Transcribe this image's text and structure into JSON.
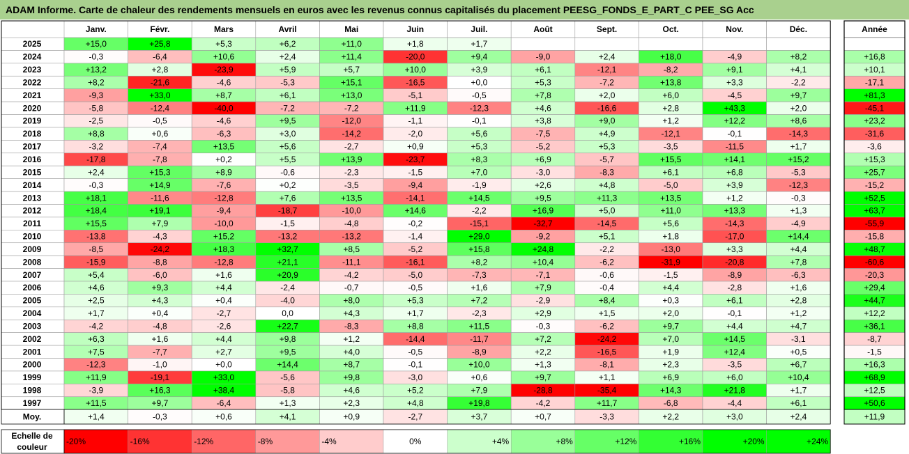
{
  "title": "ADAM Informe. Carte de chaleur des rendements mensuels en euros avec les revenus connus capitalisés du placement PEESG_FONDS_E_PART_C PEE_SG Acc",
  "chart_data": {
    "type": "heatmap",
    "months": [
      "Janv.",
      "Févr.",
      "Mars",
      "Avril",
      "Mai",
      "Juin",
      "Juil.",
      "Août",
      "Sept.",
      "Oct.",
      "Nov.",
      "Déc."
    ],
    "year_header": "Année",
    "rows": [
      {
        "year": "2025",
        "m": [
          "+15,0",
          "+25,8",
          "+5,3",
          "+6,2",
          "+11,0",
          "+1,8",
          "+1,7",
          "",
          "",
          "",
          "",
          ""
        ],
        "y": ""
      },
      {
        "year": "2024",
        "m": [
          "-0,3",
          "-6,4",
          "+10,6",
          "+2,4",
          "+11,4",
          "-20,0",
          "+9,4",
          "-9,0",
          "+2,4",
          "+18,0",
          "-4,9",
          "+8,2"
        ],
        "y": "+16,8"
      },
      {
        "year": "2023",
        "m": [
          "+13,2",
          "+2,8",
          "-23,9",
          "+5,9",
          "+5,7",
          "+10,0",
          "+3,9",
          "+6,1",
          "-12,1",
          "-8,2",
          "+9,1",
          "+4,1"
        ],
        "y": "+10,1"
      },
      {
        "year": "2022",
        "m": [
          "+8,2",
          "-21,6",
          "-4,6",
          "-5,3",
          "+15,1",
          "-16,5",
          "+0,0",
          "+5,3",
          "-7,2",
          "+13,8",
          "+3,3",
          "-2,2"
        ],
        "y": "-17,1"
      },
      {
        "year": "2021",
        "m": [
          "-9,3",
          "+33,0",
          "+8,7",
          "+6,1",
          "+13,0",
          "-5,1",
          "-0,5",
          "+7,8",
          "+2,0",
          "+6,0",
          "-4,5",
          "+9,7"
        ],
        "y": "+81,3"
      },
      {
        "year": "2020",
        "m": [
          "-5,8",
          "-12,4",
          "-40,0",
          "-7,2",
          "-7,2",
          "+11,9",
          "-12,3",
          "+4,6",
          "-16,6",
          "+2,8",
          "+43,3",
          "+2,0"
        ],
        "y": "-45,1"
      },
      {
        "year": "2019",
        "m": [
          "-2,5",
          "-0,5",
          "-4,6",
          "+9,5",
          "-12,0",
          "-1,1",
          "-0,1",
          "+3,8",
          "+9,0",
          "+1,2",
          "+12,2",
          "+8,6"
        ],
        "y": "+23,2"
      },
      {
        "year": "2018",
        "m": [
          "+8,8",
          "+0,6",
          "-6,3",
          "+3,0",
          "-14,2",
          "-2,0",
          "+5,6",
          "-7,5",
          "+4,9",
          "-12,1",
          "-0,1",
          "-14,3"
        ],
        "y": "-31,6"
      },
      {
        "year": "2017",
        "m": [
          "-3,2",
          "-7,4",
          "+13,5",
          "+5,6",
          "-2,7",
          "+0,9",
          "+5,3",
          "-5,2",
          "+5,3",
          "-3,5",
          "-11,5",
          "+1,7"
        ],
        "y": "-3,6"
      },
      {
        "year": "2016",
        "m": [
          "-17,8",
          "-7,8",
          "+0,2",
          "+5,5",
          "+13,9",
          "-23,7",
          "+8,3",
          "+6,9",
          "-5,7",
          "+15,5",
          "+14,1",
          "+15,2"
        ],
        "y": "+15,3"
      },
      {
        "year": "2015",
        "m": [
          "+2,4",
          "+15,3",
          "+8,9",
          "-0,6",
          "-2,3",
          "-1,5",
          "+7,0",
          "-3,0",
          "-8,3",
          "+6,1",
          "+6,8",
          "-5,3"
        ],
        "y": "+25,7"
      },
      {
        "year": "2014",
        "m": [
          "-0,3",
          "+14,9",
          "-7,6",
          "+0,2",
          "-3,5",
          "-9,4",
          "-1,9",
          "+2,6",
          "+4,8",
          "-5,0",
          "+3,9",
          "-12,3"
        ],
        "y": "-15,2"
      },
      {
        "year": "2013",
        "m": [
          "+18,1",
          "-11,6",
          "-12,8",
          "+7,6",
          "+13,5",
          "-14,1",
          "+14,5",
          "+9,5",
          "+11,3",
          "+13,5",
          "+1,2",
          "-0,3"
        ],
        "y": "+52,5"
      },
      {
        "year": "2012",
        "m": [
          "+18,4",
          "+19,1",
          "-9,4",
          "-18,7",
          "-10,0",
          "+14,6",
          "-2,2",
          "+16,9",
          "+5,0",
          "+11,0",
          "+13,3",
          "+1,3"
        ],
        "y": "+63,7"
      },
      {
        "year": "2011",
        "m": [
          "+15,5",
          "+7,9",
          "-10,0",
          "-1,5",
          "-4,8",
          "-0,2",
          "-15,1",
          "-32,7",
          "-14,5",
          "+5,6",
          "-14,3",
          "-4,9"
        ],
        "y": "-55,9"
      },
      {
        "year": "2010",
        "m": [
          "-13,8",
          "-4,3",
          "+15,2",
          "-13,2",
          "-13,2",
          "-1,4",
          "+29,0",
          "-9,2",
          "+5,1",
          "+1,8",
          "-17,0",
          "+14,4"
        ],
        "y": "-15,8"
      },
      {
        "year": "2009",
        "m": [
          "-8,5",
          "-24,2",
          "+18,3",
          "+32,7",
          "+8,5",
          "-5,2",
          "+15,8",
          "+24,8",
          "-2,2",
          "-13,0",
          "+3,3",
          "+4,4"
        ],
        "y": "+48,7"
      },
      {
        "year": "2008",
        "m": [
          "-15,9",
          "-8,8",
          "-12,8",
          "+21,1",
          "-11,1",
          "-16,1",
          "+8,2",
          "+10,4",
          "-6,2",
          "-31,9",
          "-20,8",
          "+7,8"
        ],
        "y": "-60,6"
      },
      {
        "year": "2007",
        "m": [
          "+5,4",
          "-6,0",
          "+1,6",
          "+20,9",
          "-4,2",
          "-5,0",
          "-7,3",
          "-7,1",
          "-0,6",
          "-1,5",
          "-8,9",
          "-6,3"
        ],
        "y": "-20,3"
      },
      {
        "year": "2006",
        "m": [
          "+4,6",
          "+9,3",
          "+4,4",
          "-2,4",
          "-0,7",
          "-0,5",
          "+1,6",
          "+7,9",
          "-0,4",
          "+4,4",
          "-2,8",
          "+1,6"
        ],
        "y": "+29,4"
      },
      {
        "year": "2005",
        "m": [
          "+2,5",
          "+4,3",
          "+0,4",
          "-4,0",
          "+8,0",
          "+5,3",
          "+7,2",
          "-2,9",
          "+8,4",
          "+0,3",
          "+6,1",
          "+2,8"
        ],
        "y": "+44,7"
      },
      {
        "year": "2004",
        "m": [
          "+1,7",
          "+0,4",
          "-2,7",
          "0,0",
          "+4,3",
          "+1,7",
          "-2,3",
          "+2,9",
          "+1,5",
          "+2,0",
          "-0,1",
          "+1,2"
        ],
        "y": "+12,2"
      },
      {
        "year": "2003",
        "m": [
          "-4,2",
          "-4,8",
          "-2,6",
          "+22,7",
          "-8,3",
          "+8,8",
          "+11,5",
          "-0,3",
          "-6,2",
          "+9,7",
          "+4,4",
          "+4,7"
        ],
        "y": "+36,1"
      },
      {
        "year": "2002",
        "m": [
          "+6,3",
          "+1,6",
          "+4,4",
          "+9,8",
          "+1,2",
          "-14,4",
          "-11,7",
          "+7,2",
          "-24,2",
          "+7,0",
          "+14,5",
          "-3,1"
        ],
        "y": "-8,7"
      },
      {
        "year": "2001",
        "m": [
          "+7,5",
          "-7,7",
          "+2,7",
          "+9,5",
          "+4,0",
          "-0,5",
          "-8,9",
          "+2,2",
          "-16,5",
          "+1,9",
          "+12,4",
          "+0,5"
        ],
        "y": "-1,5"
      },
      {
        "year": "2000",
        "m": [
          "-12,3",
          "-1,0",
          "+0,0",
          "+14,4",
          "+8,7",
          "-0,1",
          "+10,0",
          "+1,3",
          "-8,1",
          "+2,3",
          "-3,5",
          "+6,7"
        ],
        "y": "+16,3"
      },
      {
        "year": "1999",
        "m": [
          "+11,9",
          "-19,1",
          "+33,0",
          "-5,6",
          "+9,8",
          "-3,0",
          "+0,6",
          "+9,7",
          "+1,1",
          "+6,9",
          "+6,0",
          "+10,4"
        ],
        "y": "+68,9"
      },
      {
        "year": "1998",
        "m": [
          "-3,9",
          "+16,3",
          "+38,4",
          "-5,8",
          "+4,6",
          "+5,2",
          "+7,9",
          "-28,8",
          "-35,4",
          "+14,3",
          "+21,8",
          "+1,7"
        ],
        "y": "+12,5"
      },
      {
        "year": "1997",
        "m": [
          "+11,5",
          "+9,7",
          "-6,4",
          "+1,3",
          "+2,3",
          "+4,8",
          "+19,8",
          "-4,2",
          "+11,7",
          "-6,8",
          "-4,4",
          "+6,1"
        ],
        "y": "+50,6"
      }
    ],
    "average": {
      "label": "Moy.",
      "m": [
        "+1,4",
        "-0,3",
        "+0,6",
        "+4,1",
        "+0,9",
        "-2,7",
        "+3,7",
        "+0,7",
        "-3,3",
        "+2,2",
        "+3,0",
        "+2,4"
      ],
      "y": "+11,9"
    },
    "scale": {
      "label": [
        "Echelle de",
        "couleur"
      ],
      "steps": [
        "-20%",
        "-16%",
        "-12%",
        "-8%",
        "-4%",
        "0%",
        "+4%",
        "+8%",
        "+12%",
        "+16%",
        "+20%",
        "+24%"
      ]
    }
  }
}
